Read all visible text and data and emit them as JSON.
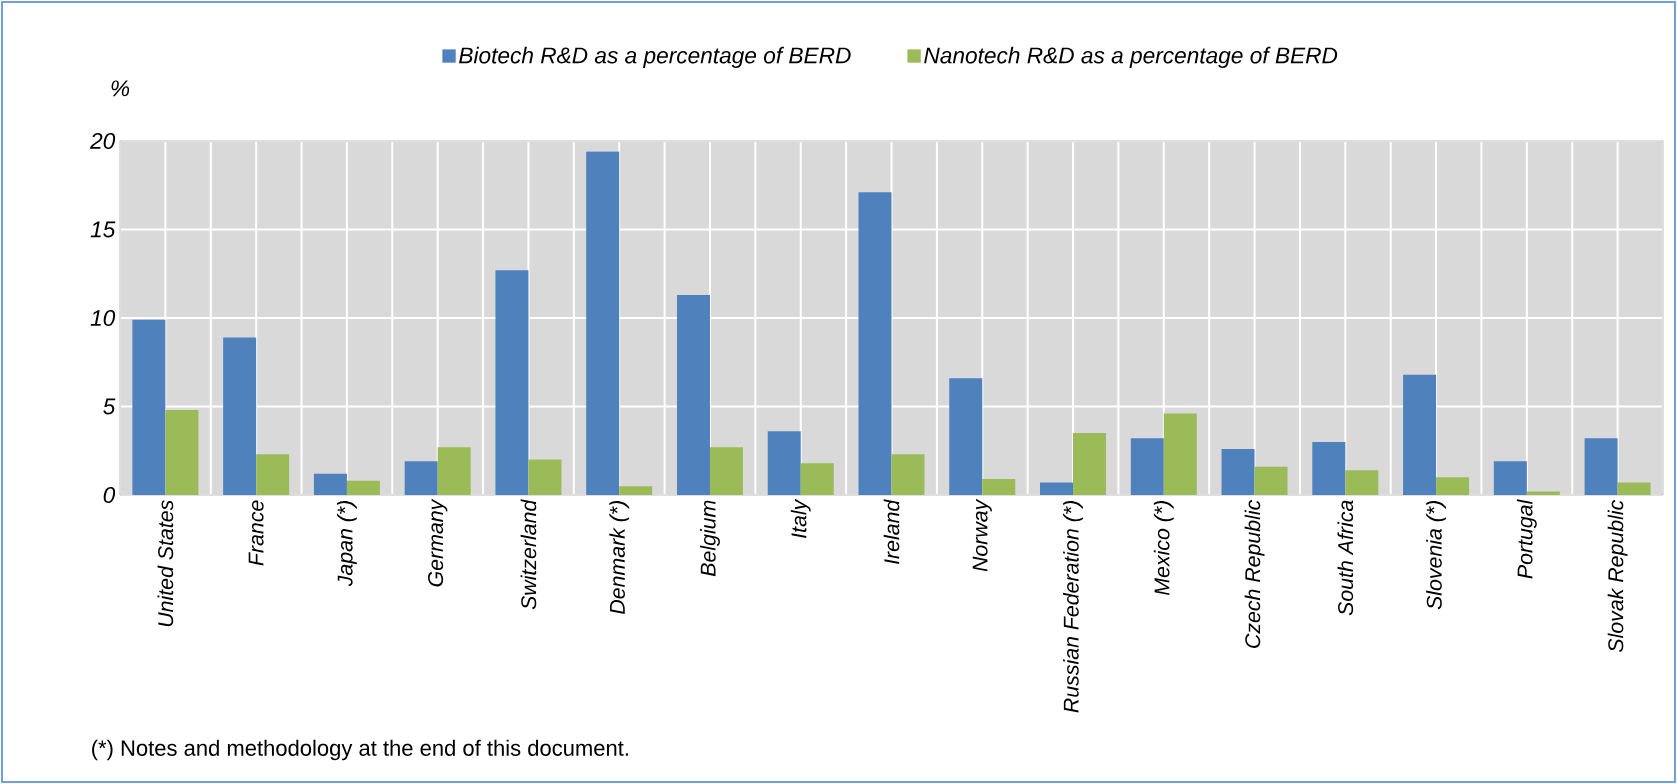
{
  "chart_data": {
    "type": "bar",
    "categories": [
      "United States",
      "France",
      "Japan (*)",
      "Germany",
      "Switzerland",
      "Denmark (*)",
      "Belgium",
      "Italy",
      "Ireland",
      "Norway",
      "Russian Federation (*)",
      "Mexico (*)",
      "Czech Republic",
      "South Africa",
      "Slovenia (*)",
      "Portugal",
      "Slovak Republic"
    ],
    "series": [
      {
        "name": "Biotech R&D as a percentage of BERD",
        "color": "#4f81bd",
        "values": [
          9.9,
          8.9,
          1.2,
          1.9,
          12.7,
          19.4,
          11.3,
          3.6,
          17.1,
          6.6,
          0.7,
          3.2,
          2.6,
          3.0,
          6.8,
          1.9,
          3.2
        ]
      },
      {
        "name": "Nanotech R&D as a percentage of BERD",
        "color": "#9bbb59",
        "values": [
          4.8,
          2.3,
          0.8,
          2.7,
          2.0,
          0.5,
          2.7,
          1.8,
          2.3,
          0.9,
          3.5,
          4.6,
          1.6,
          1.4,
          1.0,
          0.2,
          0.7
        ]
      }
    ],
    "ylabel": "%",
    "ylim": [
      0,
      20
    ],
    "yticks": [
      0,
      5,
      10,
      15,
      20
    ],
    "grid": true,
    "legend": "top",
    "annotations": [
      "(*) Notes and methodology at the end of this document."
    ]
  }
}
